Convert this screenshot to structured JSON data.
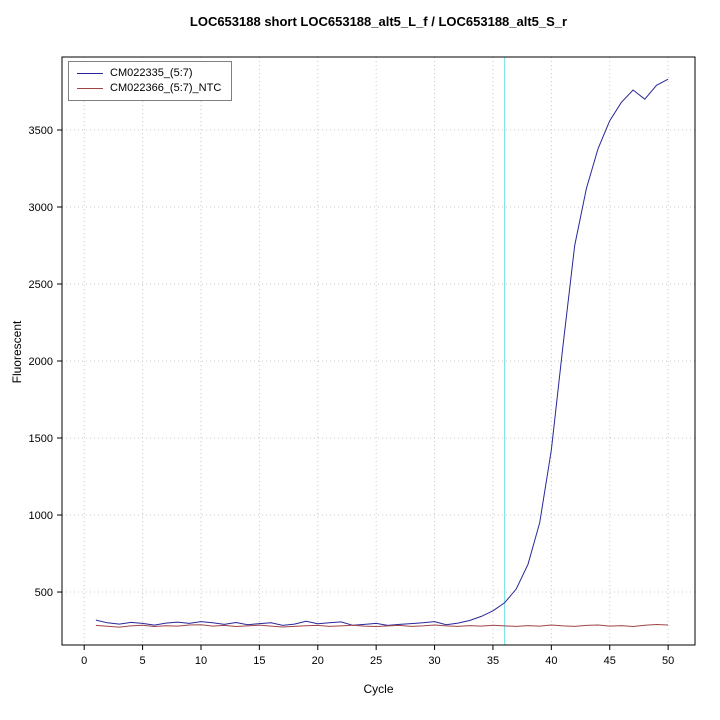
{
  "chart_data": {
    "type": "line",
    "title": "LOC653188 short LOC653188_alt5_L_f / LOC653188_alt5_S_r",
    "xlabel": "Cycle",
    "ylabel": "Fluorescent",
    "xlim": [
      -1.9,
      52.3
    ],
    "ylim": [
      156,
      3974
    ],
    "xticks": [
      0,
      5,
      10,
      15,
      20,
      25,
      30,
      35,
      40,
      45,
      50
    ],
    "yticks": [
      500,
      1000,
      1500,
      2000,
      2500,
      3000,
      3500
    ],
    "grid": true,
    "grid_color": "#c8c8c8",
    "legend_position": "top-left",
    "threshold_line": {
      "x": 36,
      "color": "#6fe3e3"
    },
    "x": [
      1,
      2,
      3,
      4,
      5,
      6,
      7,
      8,
      9,
      10,
      11,
      12,
      13,
      14,
      15,
      16,
      17,
      18,
      19,
      20,
      21,
      22,
      23,
      24,
      25,
      26,
      27,
      28,
      29,
      30,
      31,
      32,
      33,
      34,
      35,
      36,
      37,
      38,
      39,
      40,
      41,
      42,
      43,
      44,
      45,
      46,
      47,
      48,
      49,
      50
    ],
    "series": [
      {
        "name": "CM022335_(5:7)",
        "color": "#27279b",
        "values": [
          318,
          300,
          292,
          303,
          296,
          285,
          298,
          305,
          296,
          308,
          300,
          290,
          302,
          288,
          295,
          300,
          283,
          292,
          310,
          294,
          300,
          306,
          284,
          290,
          296,
          283,
          290,
          295,
          300,
          308,
          288,
          298,
          315,
          342,
          378,
          430,
          520,
          680,
          950,
          1420,
          2100,
          2750,
          3120,
          3380,
          3560,
          3680,
          3760,
          3700,
          3790,
          3830
        ]
      },
      {
        "name": "CM022366_(5:7)_NTC",
        "color": "#a04545",
        "values": [
          283,
          278,
          272,
          280,
          284,
          276,
          281,
          279,
          286,
          288,
          279,
          283,
          276,
          280,
          285,
          279,
          273,
          277,
          281,
          283,
          277,
          280,
          284,
          279,
          276,
          280,
          283,
          277,
          280,
          286,
          280,
          277,
          282,
          279,
          284,
          280,
          277,
          282,
          279,
          286,
          280,
          277,
          283,
          286,
          279,
          282,
          276,
          284,
          289,
          286
        ]
      }
    ]
  }
}
